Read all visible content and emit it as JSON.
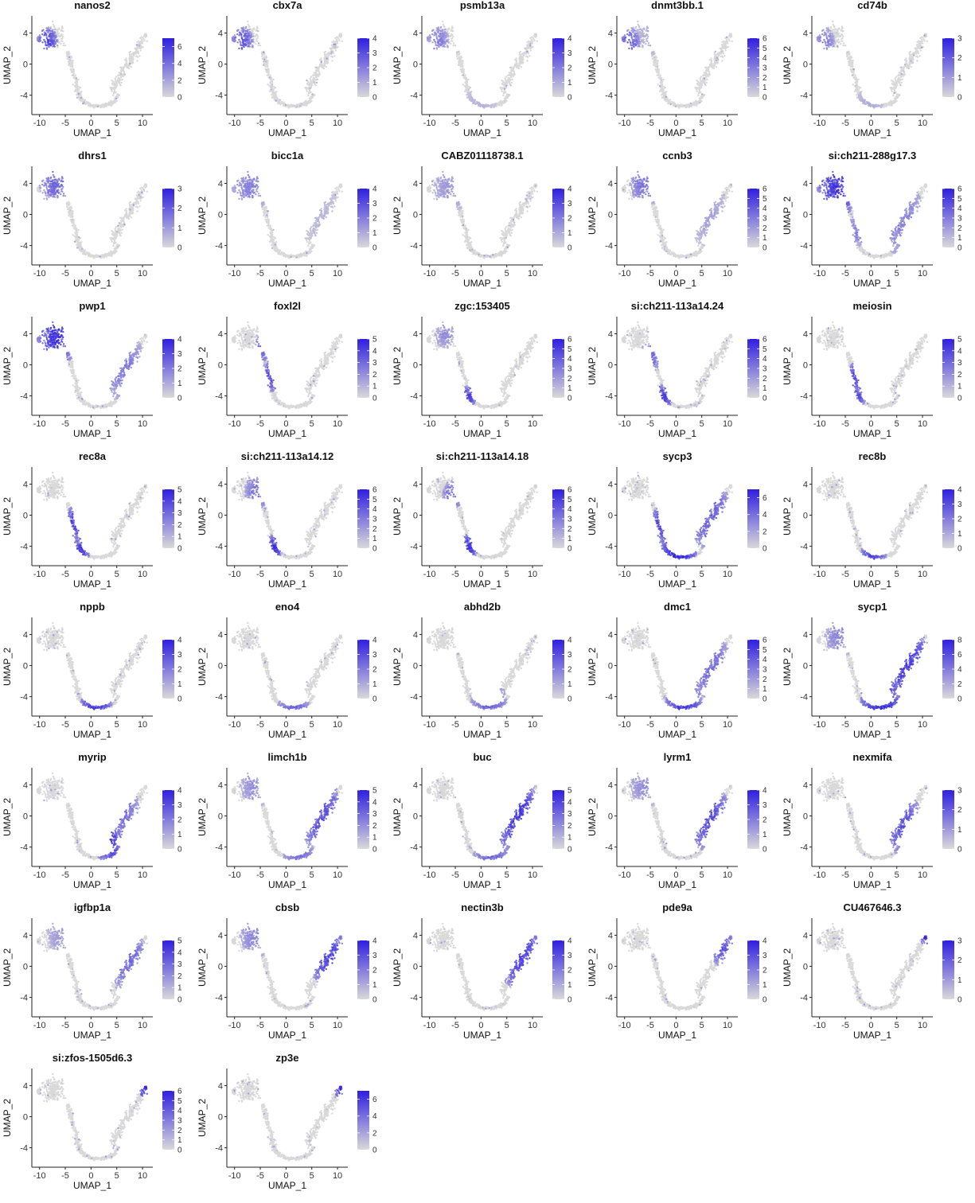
{
  "chart_data": {
    "type": "scatter",
    "xlabel": "UMAP_1",
    "ylabel": "UMAP_2",
    "x_ticks": [
      -10,
      -5,
      0,
      5,
      10
    ],
    "y_ticks": [
      -4,
      0,
      4
    ],
    "xlim": [
      -11.5,
      12
    ],
    "ylim": [
      -6.5,
      6.2
    ],
    "color_low": "#d9d9d9",
    "color_high": "#2f1fe0",
    "panels": [
      {
        "gene": "nanos2",
        "legend_ticks": [
          0,
          2,
          4,
          6
        ],
        "scale_max": 7,
        "hotspots": [
          {
            "x": -8.5,
            "y": 2.8,
            "r": 2.0,
            "v": 0.8
          }
        ]
      },
      {
        "gene": "cbx7a",
        "legend_ticks": [
          0,
          1,
          2,
          3,
          4
        ],
        "scale_max": 4,
        "hotspots": [
          {
            "x": -8.5,
            "y": 2.8,
            "r": 2.2,
            "v": 0.7
          }
        ]
      },
      {
        "gene": "psmb13a",
        "legend_ticks": [
          0,
          1,
          2,
          3,
          4
        ],
        "scale_max": 4,
        "hotspots": [
          {
            "x": -8.5,
            "y": 2.8,
            "r": 2.3,
            "v": 0.5
          },
          {
            "x": 0,
            "y": -5,
            "r": 3,
            "v": 0.2
          }
        ]
      },
      {
        "gene": "dnmt3bb.1",
        "legend_ticks": [
          0,
          1,
          2,
          3,
          4,
          5,
          6
        ],
        "scale_max": 6,
        "hotspots": [
          {
            "x": -9,
            "y": 2.7,
            "r": 2.0,
            "v": 0.7
          },
          {
            "x": -5,
            "y": 4,
            "r": 3,
            "v": 0.25
          }
        ]
      },
      {
        "gene": "cd74b",
        "legend_ticks": [
          0,
          1,
          2,
          3
        ],
        "scale_max": 3,
        "hotspots": [
          {
            "x": -9,
            "y": 2.7,
            "r": 2.0,
            "v": 0.5
          },
          {
            "x": 0,
            "y": -4.5,
            "r": 2.5,
            "v": 0.25
          }
        ]
      },
      {
        "gene": "dhrs1",
        "legend_ticks": [
          0,
          1,
          2,
          3
        ],
        "scale_max": 3,
        "hotspots": [
          {
            "x": -7,
            "y": 4,
            "r": 3.0,
            "v": 0.6
          }
        ]
      },
      {
        "gene": "bicc1a",
        "legend_ticks": [
          0,
          1,
          2,
          3,
          4
        ],
        "scale_max": 4,
        "hotspots": [
          {
            "x": -7,
            "y": 3.5,
            "r": 3.5,
            "v": 0.45
          },
          {
            "x": 6,
            "y": 0.5,
            "r": 4,
            "v": 0.2
          }
        ]
      },
      {
        "gene": "CABZ01118738.1",
        "legend_ticks": [
          0,
          1,
          2,
          3,
          4
        ],
        "scale_max": 4,
        "hotspots": [
          {
            "x": -6,
            "y": 3.5,
            "r": 3.5,
            "v": 0.35
          }
        ]
      },
      {
        "gene": "ccnb3",
        "legend_ticks": [
          0,
          1,
          2,
          3,
          4,
          5,
          6
        ],
        "scale_max": 6,
        "hotspots": [
          {
            "x": -6,
            "y": 4,
            "r": 3.0,
            "v": 0.55
          },
          {
            "x": 6,
            "y": 0,
            "r": 4,
            "v": 0.3
          }
        ]
      },
      {
        "gene": "si:ch211-288g17.3",
        "legend_ticks": [
          0,
          1,
          2,
          3,
          4,
          5,
          6
        ],
        "scale_max": 6,
        "hotspots": [
          {
            "x": -6.5,
            "y": 3.5,
            "r": 4.0,
            "v": 0.85
          },
          {
            "x": 5,
            "y": 0,
            "r": 5,
            "v": 0.5
          },
          {
            "x": -2.5,
            "y": -2,
            "r": 2,
            "v": 0.5
          }
        ]
      },
      {
        "gene": "pwp1",
        "legend_ticks": [
          0,
          1,
          2,
          3,
          4
        ],
        "scale_max": 4,
        "hotspots": [
          {
            "x": -6.5,
            "y": 3.8,
            "r": 4.0,
            "v": 0.85
          },
          {
            "x": 6,
            "y": 0,
            "r": 4.5,
            "v": 0.5
          }
        ]
      },
      {
        "gene": "foxl2l",
        "legend_ticks": [
          0,
          1,
          2,
          3,
          4,
          5
        ],
        "scale_max": 5,
        "hotspots": [
          {
            "x": -4,
            "y": 2.5,
            "r": 2.0,
            "v": 0.8
          },
          {
            "x": -3,
            "y": -1.5,
            "r": 2,
            "v": 0.75
          }
        ]
      },
      {
        "gene": "zgc:153405",
        "legend_ticks": [
          0,
          1,
          2,
          3,
          4,
          5,
          6
        ],
        "scale_max": 6,
        "hotspots": [
          {
            "x": -2.5,
            "y": -4.2,
            "r": 1.5,
            "v": 0.8
          },
          {
            "x": -7,
            "y": 4,
            "r": 2,
            "v": 0.4
          },
          {
            "x": -6,
            "y": 0.5,
            "r": 1.2,
            "v": 0.6
          }
        ]
      },
      {
        "gene": "si:ch211-113a14.24",
        "legend_ticks": [
          0,
          1,
          2,
          3,
          4,
          5,
          6
        ],
        "scale_max": 6,
        "hotspots": [
          {
            "x": -2.5,
            "y": -4.2,
            "r": 1.8,
            "v": 0.8
          },
          {
            "x": -5,
            "y": 1,
            "r": 2,
            "v": 0.6
          }
        ]
      },
      {
        "gene": "meiosin",
        "legend_ticks": [
          0,
          1,
          2,
          3,
          4,
          5
        ],
        "scale_max": 5,
        "hotspots": [
          {
            "x": -3,
            "y": -1.5,
            "r": 1.8,
            "v": 0.8
          },
          {
            "x": -2.5,
            "y": -4,
            "r": 1.5,
            "v": 0.7
          }
        ]
      },
      {
        "gene": "rec8a",
        "legend_ticks": [
          0,
          1,
          2,
          3,
          4,
          5
        ],
        "scale_max": 5,
        "hotspots": [
          {
            "x": -3,
            "y": -1,
            "r": 2.2,
            "v": 0.85
          },
          {
            "x": -2,
            "y": -4.5,
            "r": 1.8,
            "v": 0.8
          }
        ]
      },
      {
        "gene": "si:ch211-113a14.12",
        "legend_ticks": [
          0,
          1,
          2,
          3,
          4,
          5,
          6
        ],
        "scale_max": 6,
        "hotspots": [
          {
            "x": -2.5,
            "y": -4.2,
            "r": 1.8,
            "v": 0.85
          },
          {
            "x": -5.5,
            "y": 3,
            "r": 2.5,
            "v": 0.55
          },
          {
            "x": 4,
            "y": 2,
            "r": 2.5,
            "v": 0.3
          }
        ]
      },
      {
        "gene": "si:ch211-113a14.18",
        "legend_ticks": [
          0,
          1,
          2,
          3,
          4,
          5,
          6
        ],
        "scale_max": 6,
        "hotspots": [
          {
            "x": -2.5,
            "y": -4.2,
            "r": 1.8,
            "v": 0.85
          },
          {
            "x": -5.5,
            "y": 2.5,
            "r": 2.0,
            "v": 0.6
          }
        ]
      },
      {
        "gene": "sycp3",
        "legend_ticks": [
          0,
          2,
          4,
          6
        ],
        "scale_max": 7,
        "hotspots": [
          {
            "x": 0.5,
            "y": -5,
            "r": 3.5,
            "v": 0.95
          },
          {
            "x": -3,
            "y": -1.5,
            "r": 2.5,
            "v": 0.8
          },
          {
            "x": 6.5,
            "y": 0,
            "r": 4.5,
            "v": 0.65
          }
        ]
      },
      {
        "gene": "rec8b",
        "legend_ticks": [
          0,
          1,
          2,
          3,
          4
        ],
        "scale_max": 4,
        "hotspots": [
          {
            "x": 0.5,
            "y": -5.2,
            "r": 2.5,
            "v": 0.75
          }
        ]
      },
      {
        "gene": "nppb",
        "legend_ticks": [
          0,
          1,
          2,
          3,
          4
        ],
        "scale_max": 4,
        "hotspots": [
          {
            "x": 1,
            "y": -5.2,
            "r": 3.0,
            "v": 0.85
          }
        ]
      },
      {
        "gene": "eno4",
        "legend_ticks": [
          0,
          1,
          2,
          3,
          4
        ],
        "scale_max": 4,
        "hotspots": [
          {
            "x": 1.5,
            "y": -5.2,
            "r": 3.0,
            "v": 0.6
          }
        ]
      },
      {
        "gene": "abhd2b",
        "legend_ticks": [
          0,
          1,
          2,
          3,
          4
        ],
        "scale_max": 4,
        "hotspots": [
          {
            "x": 1.5,
            "y": -5,
            "r": 3.5,
            "v": 0.6
          }
        ]
      },
      {
        "gene": "dmc1",
        "legend_ticks": [
          0,
          1,
          2,
          3,
          4,
          5,
          6
        ],
        "scale_max": 6,
        "hotspots": [
          {
            "x": 1.5,
            "y": -5,
            "r": 3.5,
            "v": 0.85
          },
          {
            "x": 6,
            "y": 0.5,
            "r": 4.5,
            "v": 0.6
          }
        ]
      },
      {
        "gene": "sycp1",
        "legend_ticks": [
          0,
          2,
          4,
          6,
          8
        ],
        "scale_max": 8,
        "hotspots": [
          {
            "x": 2,
            "y": -4.5,
            "r": 4.0,
            "v": 0.9
          },
          {
            "x": 6.5,
            "y": 0.5,
            "r": 5,
            "v": 0.85
          },
          {
            "x": -6,
            "y": 4,
            "r": 3,
            "v": 0.45
          }
        ]
      },
      {
        "gene": "myrip",
        "legend_ticks": [
          0,
          1,
          2,
          3,
          4
        ],
        "scale_max": 4,
        "hotspots": [
          {
            "x": 3.5,
            "y": -3.5,
            "r": 2.8,
            "v": 0.85
          },
          {
            "x": 6,
            "y": 0.5,
            "r": 3.5,
            "v": 0.6
          }
        ]
      },
      {
        "gene": "limch1b",
        "legend_ticks": [
          0,
          1,
          2,
          3,
          4,
          5
        ],
        "scale_max": 5,
        "hotspots": [
          {
            "x": 6.5,
            "y": 0.5,
            "r": 4.5,
            "v": 0.75
          },
          {
            "x": -6,
            "y": 4,
            "r": 3,
            "v": 0.4
          },
          {
            "x": 2.5,
            "y": -5,
            "r": 3,
            "v": 0.55
          }
        ]
      },
      {
        "gene": "buc",
        "legend_ticks": [
          0,
          1,
          2,
          3,
          4,
          5
        ],
        "scale_max": 5,
        "hotspots": [
          {
            "x": 6.5,
            "y": 0.5,
            "r": 5.0,
            "v": 0.85
          },
          {
            "x": 2,
            "y": -5,
            "r": 3.5,
            "v": 0.6
          }
        ]
      },
      {
        "gene": "lyrm1",
        "legend_ticks": [
          0,
          1,
          2,
          3,
          4
        ],
        "scale_max": 4,
        "hotspots": [
          {
            "x": 6,
            "y": 0,
            "r": 4.5,
            "v": 0.75
          },
          {
            "x": -6,
            "y": 4,
            "r": 3,
            "v": 0.4
          }
        ]
      },
      {
        "gene": "nexmifa",
        "legend_ticks": [
          0,
          1,
          2,
          3
        ],
        "scale_max": 3,
        "hotspots": [
          {
            "x": 6,
            "y": -1,
            "r": 4.0,
            "v": 0.7
          }
        ]
      },
      {
        "gene": "igfbp1a",
        "legend_ticks": [
          0,
          1,
          2,
          3,
          4,
          5
        ],
        "scale_max": 5,
        "hotspots": [
          {
            "x": 7,
            "y": 1,
            "r": 4.0,
            "v": 0.6
          },
          {
            "x": -6,
            "y": 4,
            "r": 2.5,
            "v": 0.35
          }
        ]
      },
      {
        "gene": "cbsb",
        "legend_ticks": [
          0,
          1,
          2,
          3,
          4
        ],
        "scale_max": 4,
        "hotspots": [
          {
            "x": 8,
            "y": 1.5,
            "r": 4.0,
            "v": 0.8
          },
          {
            "x": -6,
            "y": 4,
            "r": 3,
            "v": 0.45
          }
        ]
      },
      {
        "gene": "nectin3b",
        "legend_ticks": [
          0,
          1,
          2,
          3,
          4
        ],
        "scale_max": 4,
        "hotspots": [
          {
            "x": 7.5,
            "y": 1.5,
            "r": 4.5,
            "v": 0.8
          }
        ]
      },
      {
        "gene": "pde9a",
        "legend_ticks": [
          0,
          1,
          2,
          3,
          4
        ],
        "scale_max": 4,
        "hotspots": [
          {
            "x": 9,
            "y": 2.5,
            "r": 2.5,
            "v": 0.7
          }
        ]
      },
      {
        "gene": "CU467646.3",
        "legend_ticks": [
          0,
          1,
          2,
          3
        ],
        "scale_max": 3,
        "hotspots": [
          {
            "x": 10.5,
            "y": 3.6,
            "r": 0.9,
            "v": 0.9
          }
        ]
      },
      {
        "gene": "si:zfos-1505d6.3",
        "legend_ticks": [
          0,
          1,
          2,
          3,
          4,
          5,
          6
        ],
        "scale_max": 6,
        "hotspots": [
          {
            "x": 10.5,
            "y": 3.6,
            "r": 1.3,
            "v": 0.9
          }
        ]
      },
      {
        "gene": "zp3e",
        "legend_ticks": [
          0,
          2,
          4,
          6
        ],
        "scale_max": 7,
        "hotspots": [
          {
            "x": 10.5,
            "y": 3.6,
            "r": 1.3,
            "v": 0.9
          }
        ]
      }
    ]
  }
}
